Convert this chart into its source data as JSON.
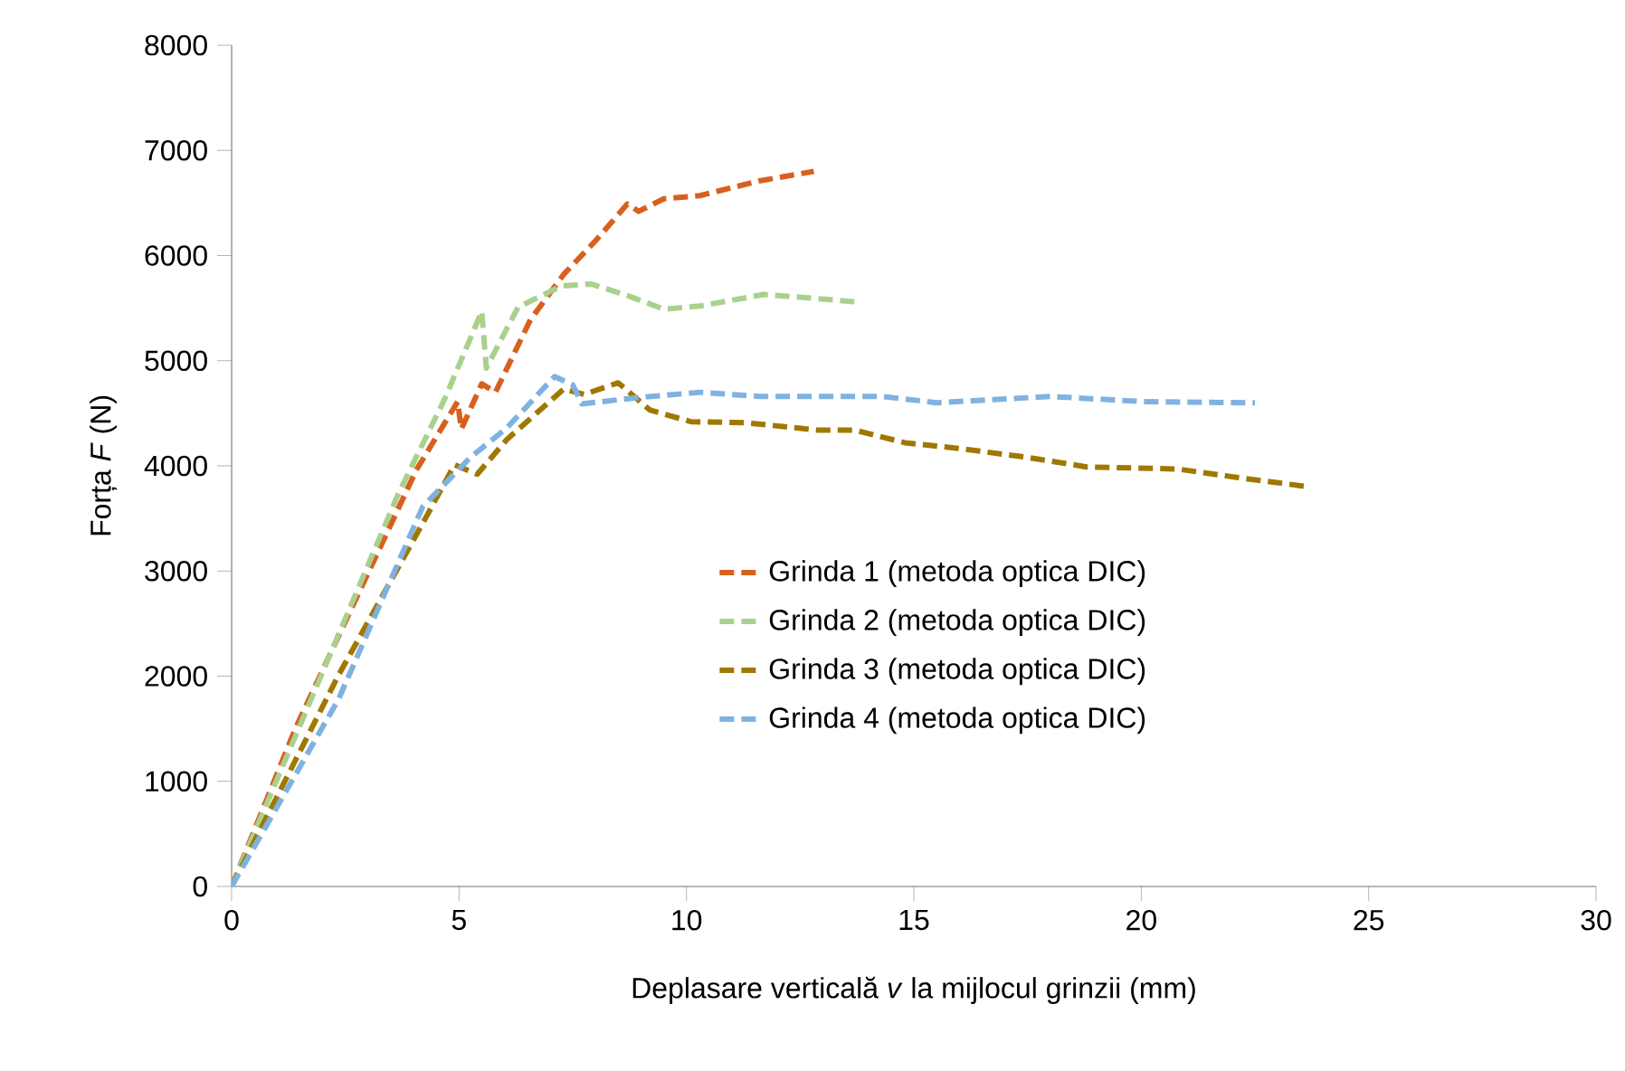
{
  "chart_data": {
    "type": "line",
    "xlabel": "Deplasare verticală *v* la mijlocul grinzii (mm)",
    "ylabel": "Forța *F* (N)",
    "xlim": [
      0,
      30
    ],
    "xticks": [
      0,
      5,
      10,
      15,
      20,
      25,
      30
    ],
    "ylim": [
      0,
      8000
    ],
    "yticks": [
      0,
      1000,
      2000,
      3000,
      4000,
      5000,
      6000,
      7000,
      8000
    ],
    "grid": false,
    "legend": "right",
    "marker": "none",
    "line_style": "dashed",
    "series": [
      {
        "name": "Grinda 1 (metoda optica DIC)",
        "color": "#d8601e",
        "x": [
          0,
          1.4,
          4.06,
          4.97,
          5.05,
          5.5,
          5.8,
          6.57,
          7.3,
          8.0,
          8.7,
          8.95,
          9.5,
          10.3,
          11.6,
          12.8
        ],
        "values": [
          0,
          1500,
          3960,
          4610,
          4350,
          4780,
          4700,
          5390,
          5820,
          6140,
          6490,
          6420,
          6540,
          6570,
          6710,
          6800
        ]
      },
      {
        "name": "Grinda 2 (metoda optica DIC)",
        "color": "#a9d18e",
        "x": [
          0,
          3.66,
          4.7,
          5.5,
          5.6,
          6.3,
          7.25,
          7.9,
          8.7,
          9.5,
          10.3,
          11.7,
          12.9,
          13.7
        ],
        "values": [
          0,
          3730,
          4650,
          5470,
          4930,
          5510,
          5710,
          5730,
          5620,
          5490,
          5520,
          5630,
          5590,
          5560
        ]
      },
      {
        "name": "Grinda 3 (metoda optica DIC)",
        "color": "#a07800",
        "x": [
          0,
          2.35,
          4.26,
          4.9,
          5.4,
          6.05,
          7.3,
          7.75,
          8.5,
          9.2,
          10.1,
          11.3,
          12.9,
          13.7,
          14.8,
          16.1,
          17.5,
          18.8,
          20.8,
          22.1,
          23.7
        ],
        "values": [
          0,
          2010,
          3500,
          4010,
          3920,
          4250,
          4730,
          4680,
          4790,
          4530,
          4420,
          4410,
          4340,
          4340,
          4220,
          4160,
          4080,
          3990,
          3970,
          3890,
          3800
        ]
      },
      {
        "name": "Grinda 4 (metoda optica DIC)",
        "color": "#7fb2e0",
        "x": [
          0,
          2.35,
          4.2,
          5.25,
          6.05,
          7.1,
          7.5,
          7.7,
          8.95,
          10.3,
          11.6,
          14.3,
          15.5,
          18.0,
          20.1,
          22.5
        ],
        "values": [
          0,
          1780,
          3610,
          4080,
          4360,
          4850,
          4770,
          4590,
          4650,
          4700,
          4660,
          4660,
          4600,
          4660,
          4610,
          4600
        ]
      }
    ]
  }
}
